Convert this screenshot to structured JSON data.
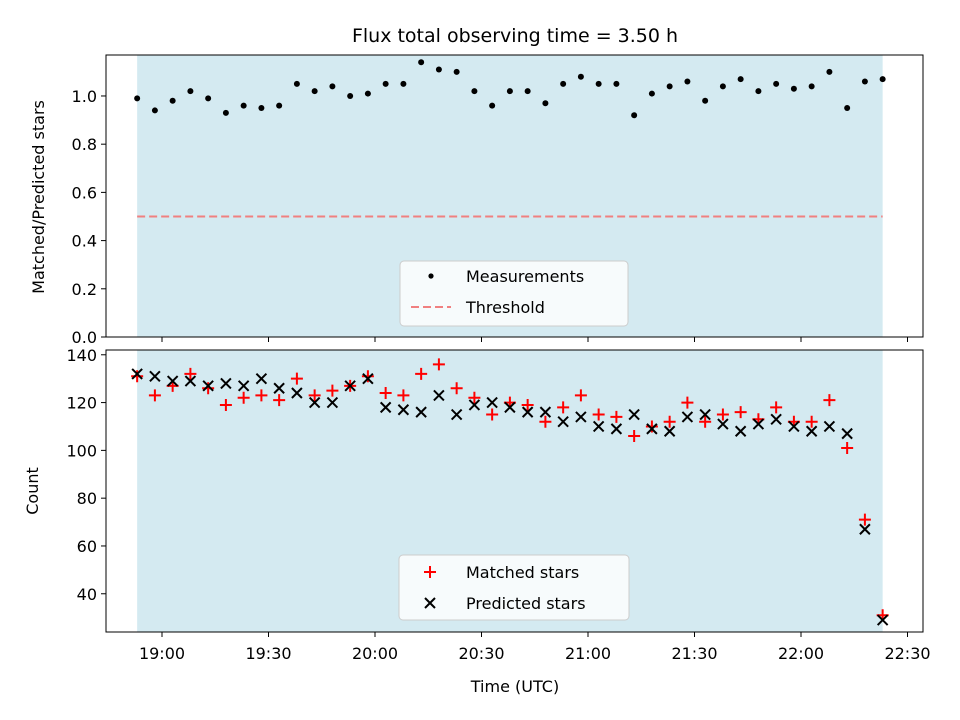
{
  "chart_data": [
    {
      "type": "scatter",
      "title": "Flux total observing time = 3.50 h",
      "ylabel": "Matched/Predicted stars",
      "ylim": [
        0,
        1.17
      ],
      "yticks": [
        0.0,
        0.2,
        0.4,
        0.6,
        0.8,
        1.0
      ],
      "ytick_labels": [
        "0.0",
        "0.2",
        "0.4",
        "0.6",
        "0.8",
        "1.0"
      ],
      "shaded_region": {
        "x_start": "18:53",
        "x_end": "22:23",
        "color": "#d4eaf1"
      },
      "threshold": {
        "name": "Threshold",
        "value": 0.5,
        "color": "#f08080",
        "style": "dashed"
      },
      "legend": {
        "position": "lower center",
        "entries": [
          "Measurements",
          "Threshold"
        ]
      },
      "series": [
        {
          "name": "Measurements",
          "marker": "dot",
          "color": "#000000",
          "x": [
            "18:53",
            "18:58",
            "19:03",
            "19:08",
            "19:13",
            "19:18",
            "19:23",
            "19:28",
            "19:33",
            "19:38",
            "19:43",
            "19:48",
            "19:53",
            "19:58",
            "20:03",
            "20:08",
            "20:13",
            "20:18",
            "20:23",
            "20:28",
            "20:33",
            "20:38",
            "20:43",
            "20:48",
            "20:53",
            "20:58",
            "21:03",
            "21:08",
            "21:13",
            "21:18",
            "21:23",
            "21:28",
            "21:33",
            "21:38",
            "21:43",
            "21:48",
            "21:53",
            "21:58",
            "22:03",
            "22:08",
            "22:13",
            "22:18",
            "22:23"
          ],
          "y": [
            0.99,
            0.94,
            0.98,
            1.02,
            0.99,
            0.93,
            0.96,
            0.95,
            0.96,
            1.05,
            1.02,
            1.04,
            1.0,
            1.01,
            1.05,
            1.05,
            1.14,
            1.11,
            1.1,
            1.02,
            0.96,
            1.02,
            1.02,
            0.97,
            1.05,
            1.08,
            1.05,
            1.05,
            0.92,
            1.01,
            1.04,
            1.06,
            0.98,
            1.04,
            1.07,
            1.02,
            1.05,
            1.03,
            1.04,
            1.1,
            0.95,
            1.06,
            1.07
          ]
        }
      ]
    },
    {
      "type": "scatter",
      "xlabel": "Time (UTC)",
      "ylabel": "Count",
      "ylim": [
        24,
        142
      ],
      "yticks": [
        40,
        60,
        80,
        100,
        120,
        140
      ],
      "ytick_labels": [
        "40",
        "60",
        "80",
        "100",
        "120",
        "140"
      ],
      "xticks": [
        "19:00",
        "19:30",
        "20:00",
        "20:30",
        "21:00",
        "21:30",
        "22:00",
        "22:30"
      ],
      "shaded_region": {
        "x_start": "18:53",
        "x_end": "22:23",
        "color": "#d4eaf1"
      },
      "legend": {
        "position": "lower center",
        "entries": [
          "Matched stars",
          "Predicted stars"
        ]
      },
      "series": [
        {
          "name": "Matched stars",
          "marker": "plus",
          "color": "#ff0000",
          "x": [
            "18:53",
            "18:58",
            "19:03",
            "19:08",
            "19:13",
            "19:18",
            "19:23",
            "19:28",
            "19:33",
            "19:38",
            "19:43",
            "19:48",
            "19:53",
            "19:58",
            "20:03",
            "20:08",
            "20:13",
            "20:18",
            "20:23",
            "20:28",
            "20:33",
            "20:38",
            "20:43",
            "20:48",
            "20:53",
            "20:58",
            "21:03",
            "21:08",
            "21:13",
            "21:18",
            "21:23",
            "21:28",
            "21:33",
            "21:38",
            "21:43",
            "21:48",
            "21:53",
            "21:58",
            "22:03",
            "22:08",
            "22:13",
            "22:18",
            "22:23"
          ],
          "y": [
            131,
            123,
            127,
            132,
            126,
            119,
            122,
            123,
            121,
            130,
            123,
            125,
            127,
            131,
            124,
            123,
            132,
            136,
            126,
            122,
            115,
            120,
            119,
            112,
            118,
            123,
            115,
            114,
            106,
            110,
            112,
            120,
            112,
            115,
            116,
            113,
            118,
            112,
            112,
            121,
            101,
            71,
            31
          ]
        },
        {
          "name": "Predicted stars",
          "marker": "x",
          "color": "#000000",
          "x": [
            "18:53",
            "18:58",
            "19:03",
            "19:08",
            "19:13",
            "19:18",
            "19:23",
            "19:28",
            "19:33",
            "19:38",
            "19:43",
            "19:48",
            "19:53",
            "19:58",
            "20:03",
            "20:08",
            "20:13",
            "20:18",
            "20:23",
            "20:28",
            "20:33",
            "20:38",
            "20:43",
            "20:48",
            "20:53",
            "20:58",
            "21:03",
            "21:08",
            "21:13",
            "21:18",
            "21:23",
            "21:28",
            "21:33",
            "21:38",
            "21:43",
            "21:48",
            "21:53",
            "21:58",
            "22:03",
            "22:08",
            "22:13",
            "22:18",
            "22:23"
          ],
          "y": [
            132,
            131,
            129,
            129,
            127,
            128,
            127,
            130,
            126,
            124,
            120,
            120,
            127,
            130,
            118,
            117,
            116,
            123,
            115,
            119,
            120,
            118,
            116,
            116,
            112,
            114,
            110,
            109,
            115,
            109,
            108,
            114,
            115,
            111,
            108,
            111,
            113,
            110,
            108,
            110,
            107,
            67,
            29
          ]
        }
      ]
    }
  ]
}
